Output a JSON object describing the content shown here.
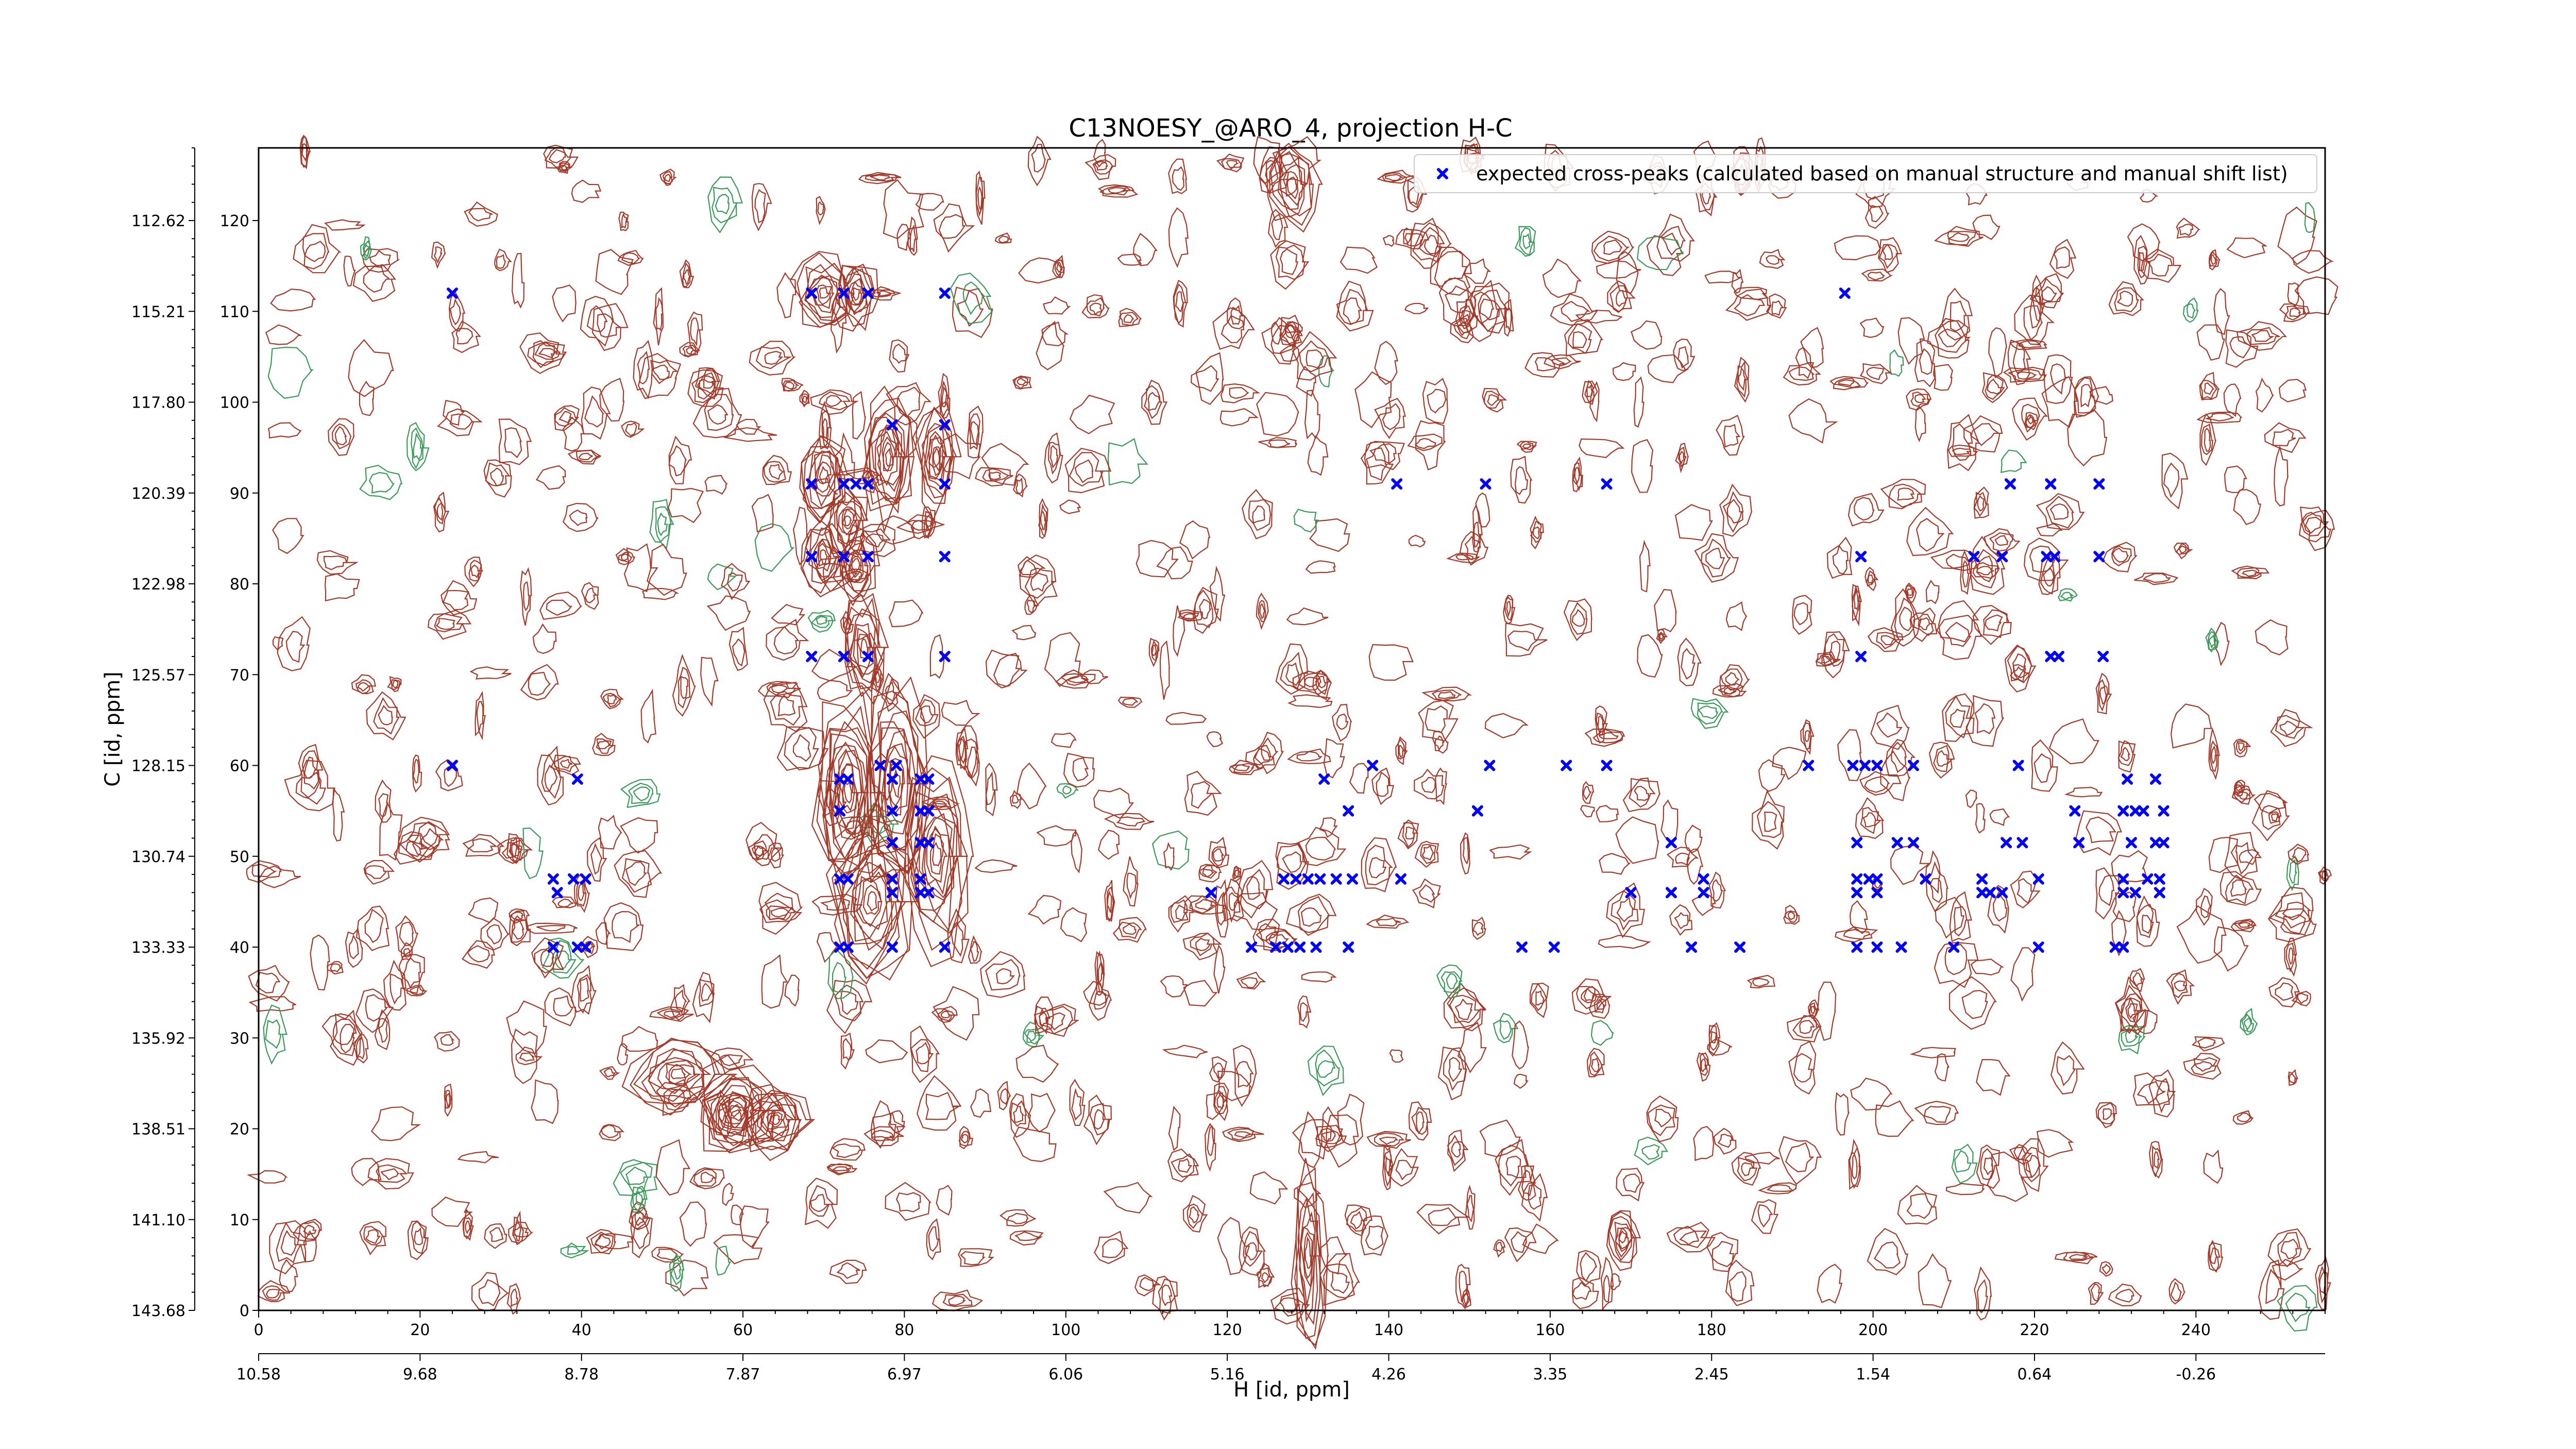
{
  "chart_data": {
    "type": "scatter",
    "title": "C13NOESY_@ARO_4, projection H-C",
    "xlabel": "H [id, ppm]",
    "ylabel": "C [id, ppm]",
    "xlim": [
      0,
      256
    ],
    "ylim": [
      0,
      128
    ],
    "grid": false,
    "legend_position": "top-right",
    "x_index_ticks": [
      0,
      20,
      40,
      60,
      80,
      100,
      120,
      140,
      160,
      180,
      200,
      220,
      240
    ],
    "x_ppm_tick_labels": [
      "10.58",
      "9.68",
      "8.78",
      "7.87",
      "6.97",
      "6.06",
      "5.16",
      "4.26",
      "3.35",
      "2.45",
      "1.54",
      "0.64",
      "-0.26"
    ],
    "y_index_ticks": [
      0,
      10,
      20,
      30,
      40,
      50,
      60,
      70,
      80,
      90,
      100,
      110,
      120
    ],
    "y_ppm_tick_labels": [
      "143.68",
      "141.10",
      "138.51",
      "135.92",
      "133.33",
      "130.74",
      "128.15",
      "125.57",
      "122.98",
      "120.39",
      "117.80",
      "115.21",
      "112.62"
    ],
    "y_ppm_tick_positions": [
      0,
      10,
      20,
      30,
      40,
      50,
      60,
      70,
      80,
      90,
      100,
      110,
      120
    ],
    "series": [
      {
        "name": "expected cross-peaks (calculated based on manual structure and manual shift list)",
        "color": "#0000ff",
        "marker": "x",
        "points": [
          [
            24,
            112
          ],
          [
            68.5,
            112
          ],
          [
            72.5,
            112
          ],
          [
            75.5,
            112
          ],
          [
            85,
            112
          ],
          [
            196.5,
            112
          ],
          [
            68.5,
            91
          ],
          [
            72.5,
            91
          ],
          [
            74,
            91
          ],
          [
            75.5,
            91
          ],
          [
            85,
            91
          ],
          [
            141,
            91
          ],
          [
            152,
            91
          ],
          [
            167,
            91
          ],
          [
            217,
            91
          ],
          [
            222,
            91
          ],
          [
            228,
            91
          ],
          [
            78.5,
            97.5
          ],
          [
            85,
            97.5
          ],
          [
            68.5,
            83
          ],
          [
            72.5,
            83
          ],
          [
            75.5,
            83
          ],
          [
            85,
            83
          ],
          [
            198.5,
            83
          ],
          [
            212.5,
            83
          ],
          [
            216,
            83
          ],
          [
            221.5,
            83
          ],
          [
            222.5,
            83
          ],
          [
            228,
            83
          ],
          [
            68.5,
            72
          ],
          [
            72.5,
            72
          ],
          [
            75.5,
            72
          ],
          [
            85,
            72
          ],
          [
            198.5,
            72
          ],
          [
            222,
            72
          ],
          [
            223,
            72
          ],
          [
            228.5,
            72
          ],
          [
            24,
            60
          ],
          [
            77,
            60
          ],
          [
            79,
            60
          ],
          [
            138,
            60
          ],
          [
            152.5,
            60
          ],
          [
            162,
            60
          ],
          [
            167,
            60
          ],
          [
            192,
            60
          ],
          [
            197.5,
            60
          ],
          [
            199,
            60
          ],
          [
            200.5,
            60
          ],
          [
            205,
            60
          ],
          [
            218,
            60
          ],
          [
            39.5,
            58.5
          ],
          [
            72,
            58.5
          ],
          [
            73,
            58.5
          ],
          [
            78.5,
            58.5
          ],
          [
            82,
            58.5
          ],
          [
            83,
            58.5
          ],
          [
            132,
            58.5
          ],
          [
            231.5,
            58.5
          ],
          [
            235,
            58.5
          ],
          [
            72,
            55
          ],
          [
            78.5,
            55
          ],
          [
            82,
            55
          ],
          [
            83,
            55
          ],
          [
            135,
            55
          ],
          [
            151,
            55
          ],
          [
            225,
            55
          ],
          [
            231,
            55
          ],
          [
            232.5,
            55
          ],
          [
            233.5,
            55
          ],
          [
            236,
            55
          ],
          [
            78.5,
            51.5
          ],
          [
            82,
            51.5
          ],
          [
            83,
            51.5
          ],
          [
            175,
            51.5
          ],
          [
            198,
            51.5
          ],
          [
            203,
            51.5
          ],
          [
            205,
            51.5
          ],
          [
            216.5,
            51.5
          ],
          [
            218.5,
            51.5
          ],
          [
            225.5,
            51.5
          ],
          [
            232,
            51.5
          ],
          [
            235,
            51.5
          ],
          [
            236,
            51.5
          ],
          [
            36.5,
            47.5
          ],
          [
            39,
            47.5
          ],
          [
            40.5,
            47.5
          ],
          [
            72,
            47.5
          ],
          [
            73,
            47.5
          ],
          [
            78.5,
            47.5
          ],
          [
            82,
            47.5
          ],
          [
            127,
            47.5
          ],
          [
            128.5,
            47.5
          ],
          [
            130,
            47.5
          ],
          [
            131.5,
            47.5
          ],
          [
            133.5,
            47.5
          ],
          [
            135.5,
            47.5
          ],
          [
            141.5,
            47.5
          ],
          [
            179,
            47.5
          ],
          [
            198,
            47.5
          ],
          [
            199.5,
            47.5
          ],
          [
            200.5,
            47.5
          ],
          [
            206.5,
            47.5
          ],
          [
            213.5,
            47.5
          ],
          [
            220.5,
            47.5
          ],
          [
            231,
            47.5
          ],
          [
            234,
            47.5
          ],
          [
            235.5,
            47.5
          ],
          [
            37,
            46
          ],
          [
            78.5,
            46
          ],
          [
            82,
            46
          ],
          [
            83,
            46
          ],
          [
            118,
            46
          ],
          [
            170,
            46
          ],
          [
            175,
            46
          ],
          [
            179,
            46
          ],
          [
            198,
            46
          ],
          [
            200.5,
            46
          ],
          [
            213.5,
            46
          ],
          [
            214.5,
            46
          ],
          [
            216,
            46
          ],
          [
            231,
            46
          ],
          [
            232.5,
            46
          ],
          [
            235.5,
            46
          ],
          [
            36.5,
            40
          ],
          [
            39.5,
            40
          ],
          [
            40.5,
            40
          ],
          [
            72,
            40
          ],
          [
            73,
            40
          ],
          [
            78.5,
            40
          ],
          [
            85,
            40
          ],
          [
            123,
            40
          ],
          [
            126,
            40
          ],
          [
            127.5,
            40
          ],
          [
            129,
            40
          ],
          [
            131,
            40
          ],
          [
            135,
            40
          ],
          [
            156.5,
            40
          ],
          [
            160.5,
            40
          ],
          [
            177.5,
            40
          ],
          [
            183.5,
            40
          ],
          [
            198,
            40
          ],
          [
            200.5,
            40
          ],
          [
            203.5,
            40
          ],
          [
            210,
            40
          ],
          [
            220.5,
            40
          ],
          [
            230,
            40
          ],
          [
            231,
            40
          ]
        ]
      }
    ]
  }
}
